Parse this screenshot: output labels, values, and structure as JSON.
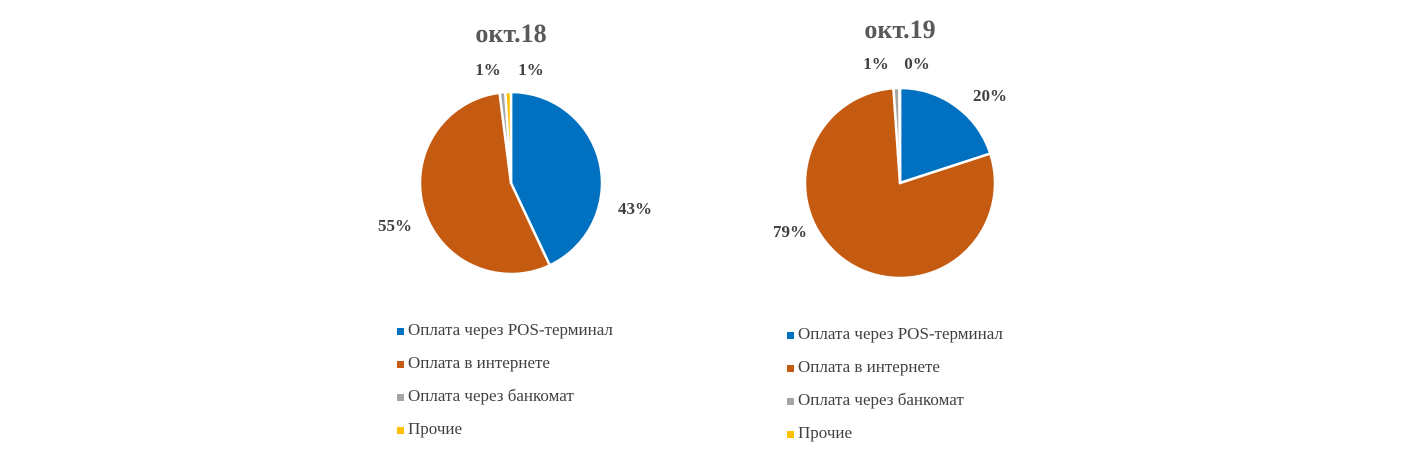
{
  "chart_data": [
    {
      "type": "pie",
      "title": "окт.18",
      "slices": [
        {
          "name": "Оплата через POS-терминал",
          "value": 43,
          "label": "43%"
        },
        {
          "name": "Оплата в интернете",
          "value": 55,
          "label": "55%"
        },
        {
          "name": "Оплата через банкомат",
          "value": 1,
          "label": "1%"
        },
        {
          "name": "Прочие",
          "value": 1,
          "label": "1%"
        }
      ],
      "legend": "bottom"
    },
    {
      "type": "pie",
      "title": "окт.19",
      "slices": [
        {
          "name": "Оплата через POS-терминал",
          "value": 20,
          "label": "20%"
        },
        {
          "name": "Оплата в интернете",
          "value": 79,
          "label": "79%"
        },
        {
          "name": "Оплата через банкомат",
          "value": 1,
          "label": "1%"
        },
        {
          "name": "Прочие",
          "value": 0.1,
          "label": "0%"
        }
      ],
      "legend": "bottom"
    }
  ],
  "colors": [
    "#0070C0",
    "#C55A11",
    "#A5A5A5",
    "#FFC000"
  ]
}
